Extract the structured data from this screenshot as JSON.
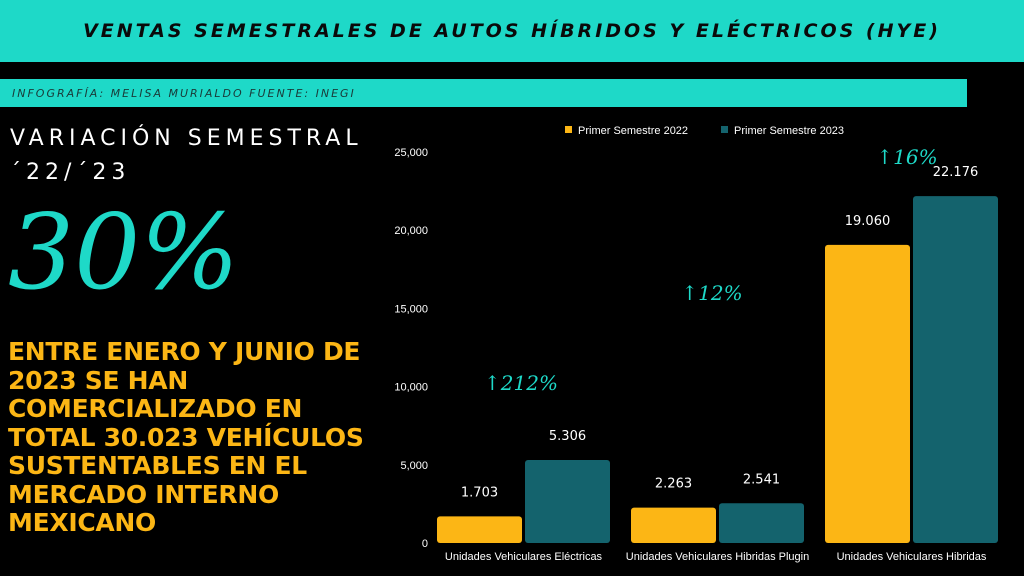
{
  "header": {
    "title": "VENTAS SEMESTRALES DE AUTOS HÍBRIDOS Y ELÉCTRICOS (HYE)",
    "credit": "INFOGRAFÍA: MELISA MURIALDO FUENTE: INEGI"
  },
  "left": {
    "variation_title": "VARIACIÓN SEMESTRAL ´22/´23",
    "big_percent": "30%",
    "description": "ENTRE ENERO Y JUNIO DE 2023 SE HAN COMERCIALIZADO EN TOTAL 30.023 VEHÍCULOS SUSTENTABLES  EN EL MERCADO INTERNO MEXICANO"
  },
  "colors": {
    "accent": "#1ed9c8",
    "series_2022": "#fcb615",
    "series_2023": "#14636d",
    "background": "#000000"
  },
  "chart_data": {
    "type": "bar",
    "categories": [
      "Unidades Vehiculares Eléctricas",
      "Unidades Vehiculares Hibridas Plugin",
      "Unidades Vehiculares Hibridas"
    ],
    "series": [
      {
        "name": "Primer Semestre 2022",
        "values": [
          1703,
          2263,
          19060
        ],
        "labels": [
          "1.703",
          "2.263",
          "19.060"
        ]
      },
      {
        "name": "Primer Semestre 2023",
        "values": [
          5306,
          2541,
          22176
        ],
        "labels": [
          "5.306",
          "2.541",
          "22.176"
        ]
      }
    ],
    "annotations": [
      "↑212%",
      "↑12%",
      "↑16%"
    ],
    "yticks": [
      0,
      5000,
      10000,
      15000,
      20000,
      25000
    ],
    "ytick_labels": [
      "0",
      "5,000",
      "10,000",
      "15,000",
      "20,000",
      "25,000"
    ],
    "ylim": [
      0,
      25000
    ],
    "legend_position": "top",
    "grid": false
  }
}
